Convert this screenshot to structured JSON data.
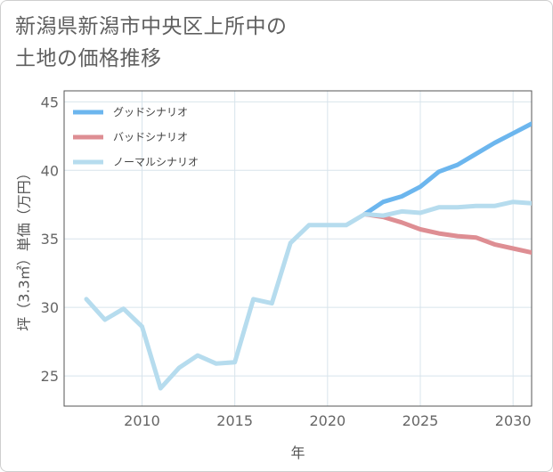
{
  "title_line1": "新潟県新潟市中央区上所中の",
  "title_line2": "土地の価格推移",
  "chart_data": {
    "type": "line",
    "title": "新潟県新潟市中央区上所中の土地の価格推移",
    "xlabel": "年",
    "ylabel": "坪（3.3㎡）単価（万円）",
    "xlim": [
      2005.8,
      2031
    ],
    "ylim": [
      22.8,
      45.8
    ],
    "xticks": [
      2010,
      2015,
      2020,
      2025,
      2030
    ],
    "yticks": [
      25,
      30,
      35,
      40,
      45
    ],
    "grid": true,
    "legend_position": "top-left",
    "series": [
      {
        "name": "グッドシナリオ",
        "color": "#6cb6ee",
        "x": [
          2022,
          2023,
          2024,
          2025,
          2026,
          2027,
          2028,
          2029,
          2030,
          2031
        ],
        "values": [
          36.8,
          37.7,
          38.1,
          38.8,
          39.9,
          40.4,
          41.2,
          42.0,
          42.7,
          43.4
        ]
      },
      {
        "name": "バッドシナリオ",
        "color": "#de8e93",
        "x": [
          2022,
          2023,
          2024,
          2025,
          2026,
          2027,
          2028,
          2029,
          2030,
          2031
        ],
        "values": [
          36.8,
          36.6,
          36.2,
          35.7,
          35.4,
          35.2,
          35.1,
          34.6,
          34.3,
          34.0
        ]
      },
      {
        "name": "ノーマルシナリオ",
        "color": "#b6dcee",
        "x": [
          2007,
          2008,
          2009,
          2010,
          2011,
          2012,
          2013,
          2014,
          2015,
          2016,
          2017,
          2018,
          2019,
          2020,
          2021,
          2022,
          2023,
          2024,
          2025,
          2026,
          2027,
          2028,
          2029,
          2030,
          2031
        ],
        "values": [
          30.6,
          29.1,
          29.9,
          28.6,
          24.1,
          25.6,
          26.5,
          25.9,
          26.0,
          30.6,
          30.3,
          34.7,
          36.0,
          36.0,
          36.0,
          36.8,
          36.7,
          37.0,
          36.9,
          37.3,
          37.3,
          37.4,
          37.4,
          37.7,
          37.6
        ]
      }
    ]
  }
}
